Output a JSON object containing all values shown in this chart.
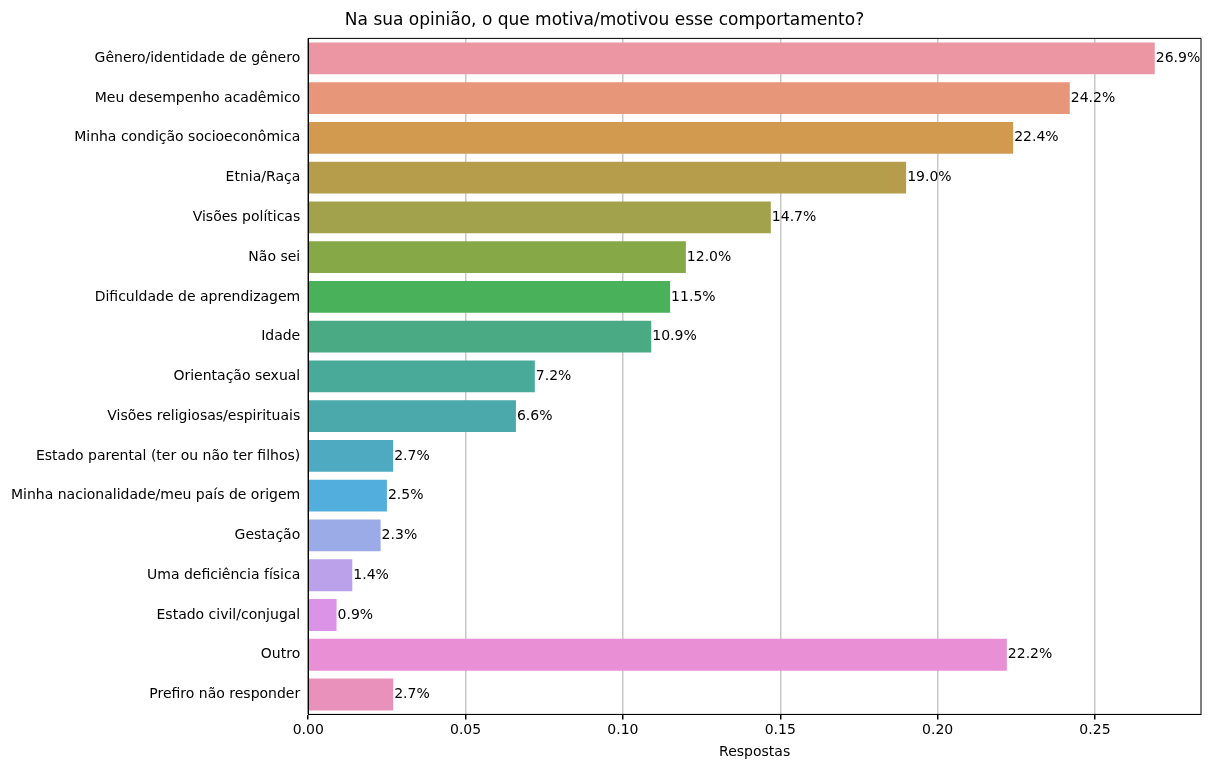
{
  "chart_data": {
    "type": "bar",
    "orientation": "horizontal",
    "title": "Na sua opinião, o que motiva/motivou esse comportamento?",
    "xlabel": "Respostas",
    "categories": [
      "Gênero/identidade de gênero",
      "Meu desempenho acadêmico",
      "Minha condição socioeconômica",
      "Etnia/Raça",
      "Visões políticas",
      "Não sei",
      "Dificuldade de aprendizagem",
      "Idade",
      "Orientação sexual",
      "Visões religiosas/espirituais",
      "Estado parental (ter ou não ter filhos)",
      "Minha nacionalidade/meu país de origem",
      "Gestação",
      "Uma deficiência física",
      "Estado civil/conjugal",
      "Outro",
      "Prefiro não responder"
    ],
    "values": [
      0.269,
      0.242,
      0.224,
      0.19,
      0.147,
      0.12,
      0.115,
      0.109,
      0.072,
      0.066,
      0.027,
      0.025,
      0.023,
      0.014,
      0.009,
      0.222,
      0.027
    ],
    "value_labels": [
      "26.9%",
      "24.2%",
      "22.4%",
      "19.0%",
      "14.7%",
      "12.0%",
      "11.5%",
      "10.9%",
      "7.2%",
      "6.6%",
      "2.7%",
      "2.5%",
      "2.3%",
      "1.4%",
      "0.9%",
      "22.2%",
      "2.7%"
    ],
    "colors": [
      "#eb96a2",
      "#e8967a",
      "#d19a4e",
      "#b59d4b",
      "#a2a24d",
      "#86a846",
      "#48b159",
      "#4aaa84",
      "#4aaa9a",
      "#4ba9ac",
      "#4eaac1",
      "#52aedc",
      "#9aabe8",
      "#bba0ea",
      "#db93e7",
      "#e88fd5",
      "#e991bb"
    ],
    "xlim": [
      0,
      0.2837
    ],
    "xticks": [
      {
        "value": 0,
        "label": "0.00"
      },
      {
        "value": 0.05,
        "label": "0.05"
      },
      {
        "value": 0.1,
        "label": "0.10"
      },
      {
        "value": 0.15,
        "label": "0.15"
      },
      {
        "value": 0.2,
        "label": "0.20"
      },
      {
        "value": 0.25,
        "label": "0.25"
      }
    ],
    "grid": "x"
  }
}
